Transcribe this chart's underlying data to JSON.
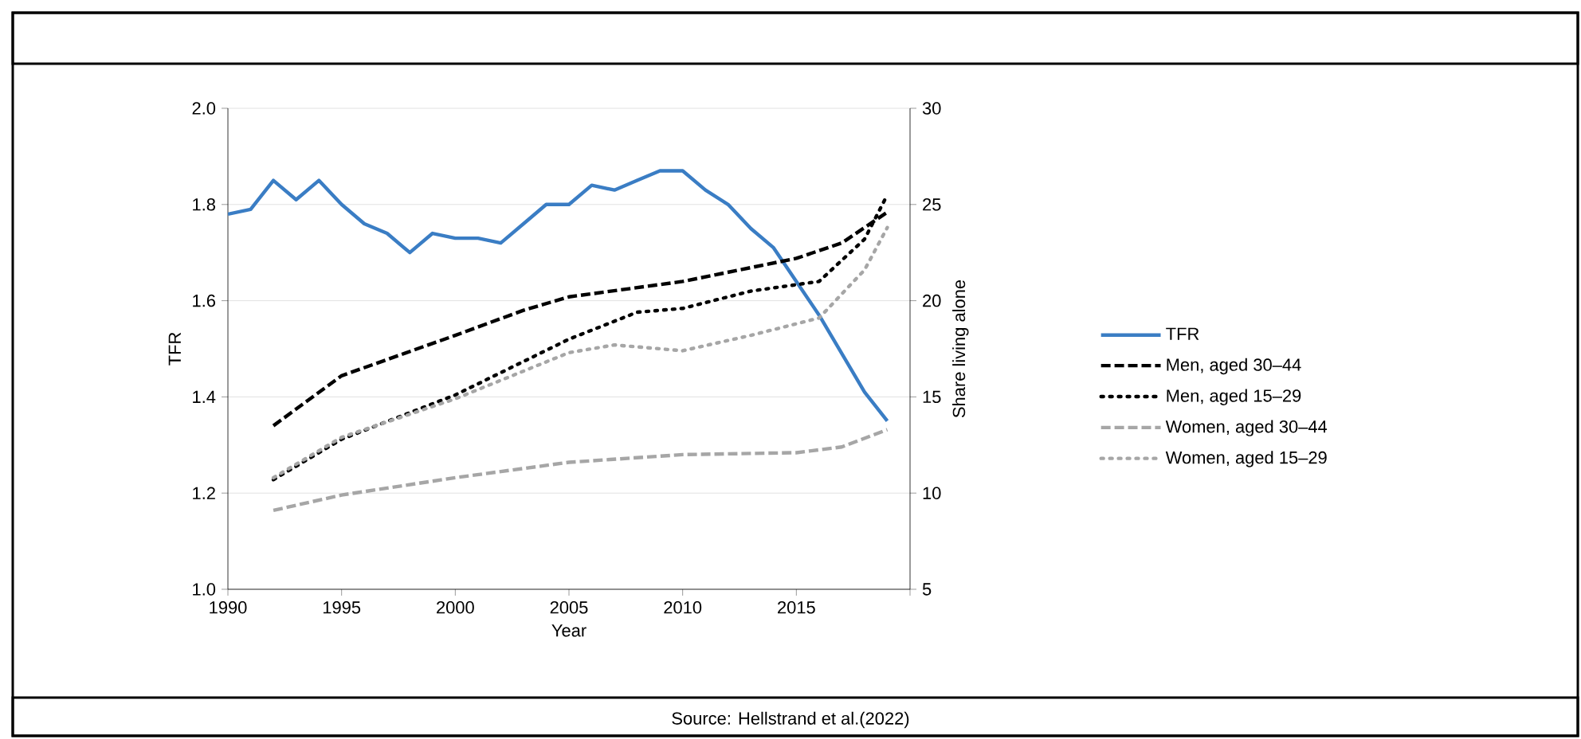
{
  "chart_data": {
    "type": "line",
    "xlabel": "Year",
    "ylabel": "TFR",
    "y2label": "Share living alone",
    "xlim": [
      1990,
      2020
    ],
    "xticks": [
      1990,
      1995,
      2000,
      2005,
      2010,
      2015,
      {
        "value": 2020,
        "label": null
      }
    ],
    "ylim": [
      1.0,
      2.0
    ],
    "yticks": [
      {
        "value": 1.0,
        "label": "1.0"
      },
      {
        "value": 1.2,
        "label": "1.2"
      },
      {
        "value": 1.4,
        "label": "1.4"
      },
      {
        "value": 1.6,
        "label": "1.6"
      },
      {
        "value": 1.8,
        "label": "1.8"
      },
      {
        "value": 2.0,
        "label": "2.0"
      }
    ],
    "y2lim": [
      5,
      30
    ],
    "y2ticks": [
      5,
      10,
      15,
      20,
      25,
      30
    ],
    "grid": "y",
    "legend": "right",
    "annotations": [
      "Source: Hellstrand et al.(2022)"
    ],
    "series": [
      {
        "name": "TFR",
        "color": "#3a7dc4",
        "line_style": "solid",
        "x": [
          1990,
          1991,
          1992,
          1993,
          1994,
          1995,
          1996,
          1997,
          1998,
          1999,
          2000,
          2001,
          2002,
          2003,
          2004,
          2005,
          2006,
          2007,
          2008,
          2009,
          2010,
          2011,
          2012,
          2013,
          2014,
          2015,
          2016,
          2017,
          2018,
          2019
        ],
        "values": [
          1.78,
          1.79,
          1.85,
          1.81,
          1.85,
          1.8,
          1.76,
          1.74,
          1.7,
          1.74,
          1.73,
          1.73,
          1.72,
          1.76,
          1.8,
          1.8,
          1.84,
          1.83,
          1.85,
          1.87,
          1.87,
          1.83,
          1.8,
          1.75,
          1.71,
          1.64,
          1.57,
          1.49,
          1.41,
          1.35
        ]
      },
      {
        "name": "Men, aged 30–44",
        "color": "#000000",
        "line_style": "dashed",
        "axis": "y2",
        "x": [
          1992,
          1995,
          2000,
          2003,
          2005,
          2010,
          2015,
          2017,
          2019
        ],
        "values": [
          13.5,
          16.1,
          18.2,
          19.5,
          20.2,
          21.0,
          22.2,
          23.0,
          24.6
        ]
      },
      {
        "name": "Men, aged 15–29",
        "color": "#000000",
        "line_style": "dotted",
        "axis": "y2",
        "x": [
          1992,
          1995,
          2000,
          2005,
          2008,
          2010,
          2013,
          2016,
          2018,
          2019
        ],
        "values": [
          10.7,
          12.8,
          15.1,
          18.0,
          19.4,
          19.6,
          20.5,
          21.0,
          23.2,
          25.5
        ]
      },
      {
        "name": "Women, aged 30–44",
        "color": "#a6a6a6",
        "line_style": "dashed",
        "axis": "y2",
        "x": [
          1992,
          1995,
          2000,
          2005,
          2010,
          2015,
          2017,
          2019
        ],
        "values": [
          9.1,
          9.9,
          10.8,
          11.6,
          12.0,
          12.1,
          12.4,
          13.3
        ]
      },
      {
        "name": "Women, aged 15–29",
        "color": "#a6a6a6",
        "line_style": "dotted",
        "axis": "y2",
        "x": [
          1992,
          1995,
          2000,
          2005,
          2007,
          2010,
          2013,
          2016,
          2018,
          2019
        ],
        "values": [
          10.8,
          12.9,
          14.9,
          17.3,
          17.7,
          17.4,
          18.2,
          19.1,
          21.6,
          23.8
        ]
      }
    ]
  }
}
